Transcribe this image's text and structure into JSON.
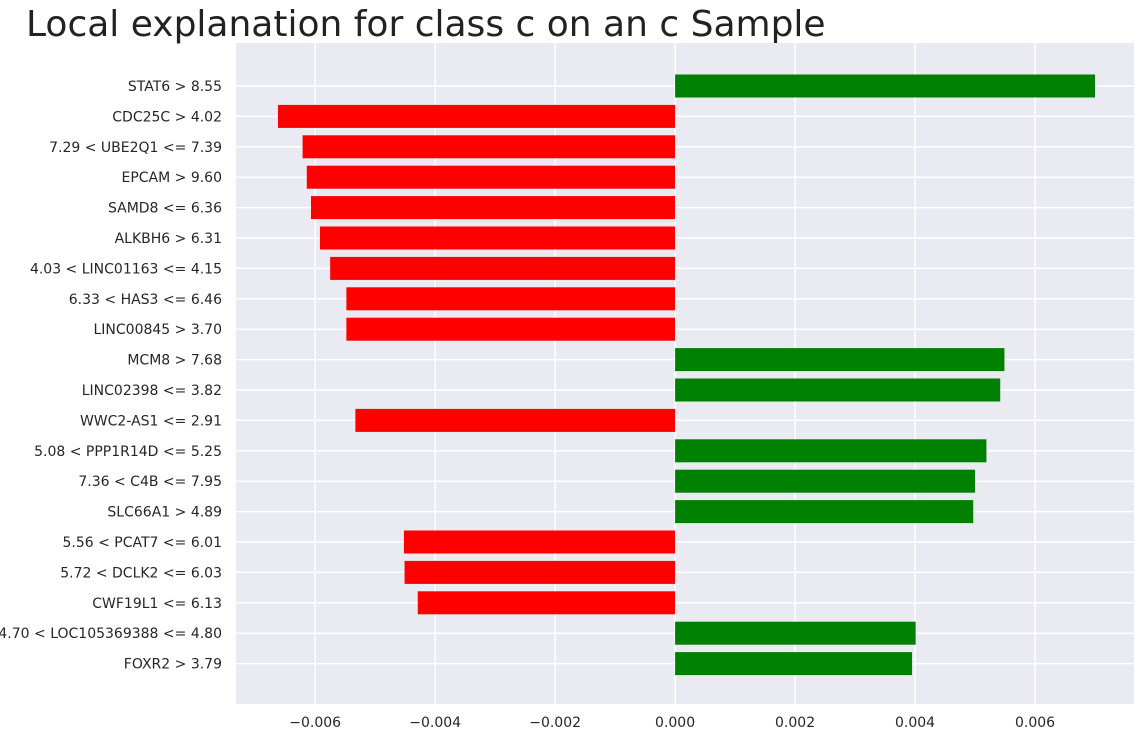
{
  "chart_data": {
    "type": "bar",
    "orientation": "horizontal",
    "title": "Local explanation for class c on an c Sample",
    "xlabel": "",
    "ylabel": "",
    "xlim": [
      -0.00732,
      0.00765
    ],
    "xticks": [
      -0.006,
      -0.004,
      -0.002,
      0.0,
      0.002,
      0.004,
      0.006
    ],
    "xtick_labels": [
      "−0.006",
      "−0.004",
      "−0.002",
      "0.000",
      "0.002",
      "0.004",
      "0.006"
    ],
    "grid": true,
    "legend": false,
    "colors": {
      "positive": "#008000",
      "negative": "#ff0000",
      "plot_background": "#eaeaf2",
      "grid": "#ffffff"
    },
    "categories": [
      "STAT6 > 8.55",
      "CDC25C > 4.02",
      "7.29 < UBE2Q1 <= 7.39",
      "EPCAM > 9.60",
      "SAMD8 <= 6.36",
      "ALKBH6 > 6.31",
      "4.03 < LINC01163 <= 4.15",
      "6.33 < HAS3 <= 6.46",
      "LINC00845 > 3.70",
      "MCM8 > 7.68",
      "LINC02398 <= 3.82",
      "WWC2-AS1 <= 2.91",
      "5.08 < PPP1R14D <= 5.25",
      "7.36 < C4B <= 7.95",
      "SLC66A1 > 4.89",
      "5.56 < PCAT7 <= 6.01",
      "5.72 < DCLK2 <= 6.03",
      "CWF19L1 <= 6.13",
      "4.70 < LOC105369388 <= 4.80",
      "FOXR2 > 3.79"
    ],
    "values": [
      0.007,
      -0.00662,
      -0.00621,
      -0.00614,
      -0.00607,
      -0.00592,
      -0.00575,
      -0.00548,
      -0.00548,
      0.00549,
      0.00542,
      -0.00533,
      0.00519,
      0.005,
      0.00497,
      -0.00452,
      -0.00451,
      -0.00429,
      0.00401,
      0.00395
    ]
  }
}
